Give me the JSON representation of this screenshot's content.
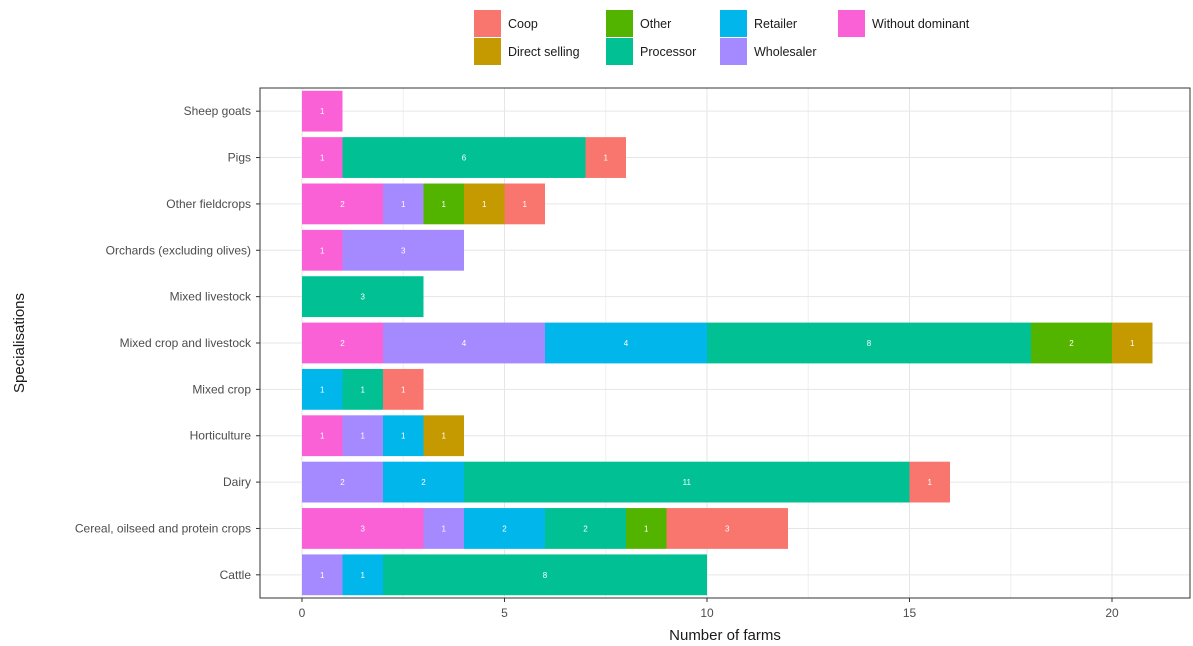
{
  "chart_data": {
    "type": "bar",
    "orientation": "horizontal",
    "stacked": true,
    "xlabel": "Number of farms",
    "ylabel": "Specialisations",
    "xlim": [
      0,
      21.5
    ],
    "xticks": [
      0,
      5,
      10,
      15,
      20
    ],
    "grid": true,
    "legend_position": "top",
    "legend": [
      {
        "name": "Coop",
        "color": "#F8766D"
      },
      {
        "name": "Direct selling",
        "color": "#C49A00"
      },
      {
        "name": "Other",
        "color": "#53B400"
      },
      {
        "name": "Processor",
        "color": "#00C094"
      },
      {
        "name": "Retailer",
        "color": "#00B6EB"
      },
      {
        "name": "Wholesaler",
        "color": "#A58AFF"
      },
      {
        "name": "Without dominant",
        "color": "#FB61D7"
      }
    ],
    "stack_order": [
      "Without dominant",
      "Wholesaler",
      "Retailer",
      "Processor",
      "Other",
      "Direct selling",
      "Coop"
    ],
    "categories": [
      "Sheep goats",
      "Pigs",
      "Other fieldcrops",
      "Orchards (excluding olives)",
      "Mixed livestock",
      "Mixed crop and livestock",
      "Mixed crop",
      "Horticulture",
      "Dairy",
      "Cereal, oilseed and protein crops",
      "Cattle"
    ],
    "series": [
      {
        "name": "Without dominant",
        "values": [
          1,
          1,
          2,
          1,
          0,
          2,
          0,
          1,
          0,
          3,
          0
        ]
      },
      {
        "name": "Wholesaler",
        "values": [
          0,
          0,
          1,
          3,
          0,
          4,
          0,
          1,
          2,
          1,
          1
        ]
      },
      {
        "name": "Retailer",
        "values": [
          0,
          0,
          0,
          0,
          0,
          4,
          1,
          1,
          2,
          2,
          1
        ]
      },
      {
        "name": "Processor",
        "values": [
          0,
          6,
          0,
          0,
          3,
          8,
          1,
          0,
          11,
          2,
          8
        ]
      },
      {
        "name": "Other",
        "values": [
          0,
          0,
          1,
          0,
          0,
          2,
          0,
          0,
          0,
          1,
          0
        ]
      },
      {
        "name": "Direct selling",
        "values": [
          0,
          0,
          1,
          0,
          0,
          1,
          0,
          1,
          0,
          0,
          0
        ]
      },
      {
        "name": "Coop",
        "values": [
          0,
          1,
          1,
          0,
          0,
          0,
          1,
          0,
          1,
          3,
          0
        ]
      }
    ]
  }
}
